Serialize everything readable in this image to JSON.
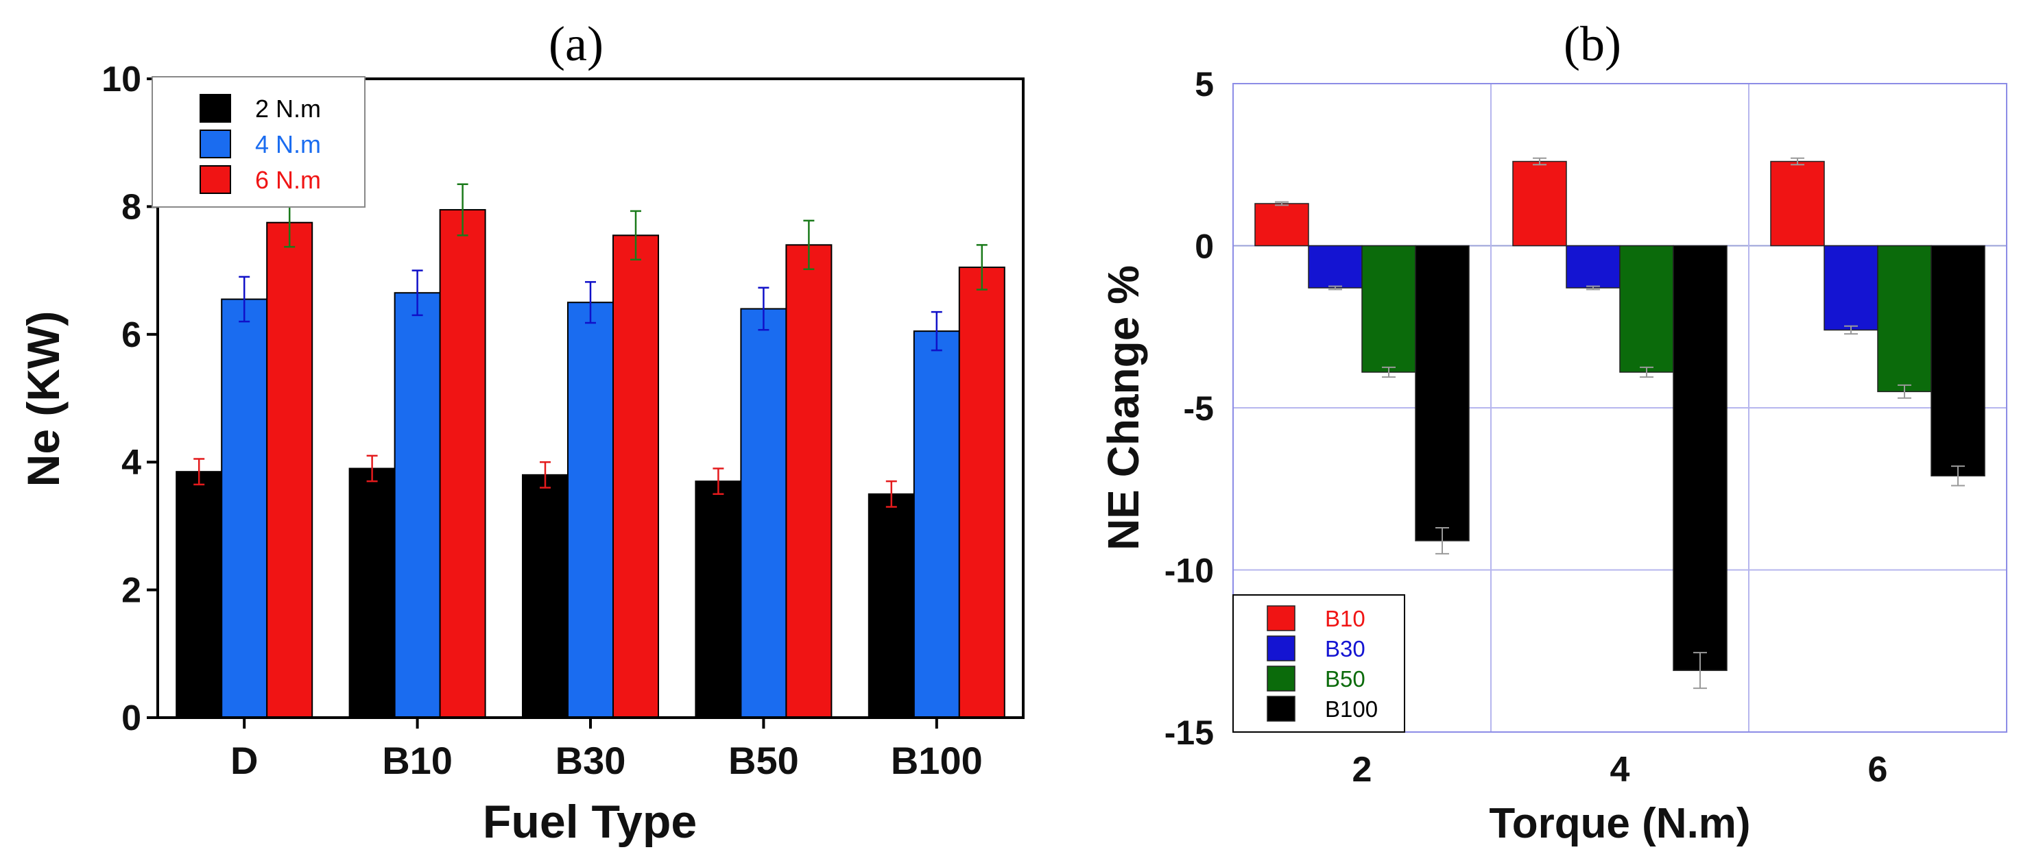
{
  "chart_data": [
    {
      "type": "bar",
      "panel_label": "(a)",
      "xlabel": "Fuel Type",
      "ylabel": "Ne (KW)",
      "categories": [
        "D",
        "B10",
        "B30",
        "B50",
        "B100"
      ],
      "ylim": [
        0,
        10
      ],
      "yticks": [
        0,
        2,
        4,
        6,
        8,
        10
      ],
      "tick_labels": [
        "0",
        "2",
        "4",
        "6",
        "8",
        "10"
      ],
      "legend_position": "top-left",
      "grid": false,
      "series": [
        {
          "name": "2  N.m",
          "color": "#000000",
          "label_color": "#000000",
          "error_color": "#e41a1c",
          "values": [
            3.85,
            3.9,
            3.8,
            3.7,
            3.5
          ],
          "errors": [
            0.2,
            0.2,
            0.2,
            0.2,
            0.2
          ]
        },
        {
          "name": "4 N.m",
          "color": "#1a6cf0",
          "label_color": "#1a6cf0",
          "error_color": "#1010c8",
          "values": [
            6.55,
            6.65,
            6.5,
            6.4,
            6.05
          ],
          "errors": [
            0.35,
            0.35,
            0.32,
            0.33,
            0.3
          ]
        },
        {
          "name": "6 N.m",
          "color": "#f01414",
          "label_color": "#f01414",
          "error_color": "#1a7a1a",
          "values": [
            7.75,
            7.95,
            7.55,
            7.4,
            7.05
          ],
          "errors": [
            0.38,
            0.4,
            0.38,
            0.38,
            0.35
          ]
        }
      ]
    },
    {
      "type": "bar",
      "panel_label": "(b)",
      "xlabel": "Torque (N.m)",
      "ylabel": "NE Change %",
      "categories": [
        "2",
        "4",
        "6"
      ],
      "ylim": [
        -15,
        5
      ],
      "yticks": [
        5,
        0,
        -5,
        -10,
        -15
      ],
      "tick_labels": [
        "5",
        "0",
        "-5",
        "-10",
        "-15"
      ],
      "legend_position": "bottom-left",
      "grid": true,
      "series": [
        {
          "name": "B10",
          "color": "#f01414",
          "label_color": "#f01414",
          "error_color": "#999999",
          "values": [
            1.3,
            2.6,
            2.6
          ],
          "errors": [
            0.05,
            0.1,
            0.1
          ]
        },
        {
          "name": "B30",
          "color": "#1414d2",
          "label_color": "#1414d2",
          "error_color": "#999999",
          "values": [
            -1.3,
            -1.3,
            -2.6
          ],
          "errors": [
            0.05,
            0.05,
            0.12
          ]
        },
        {
          "name": "B50",
          "color": "#0b6b0b",
          "label_color": "#0b6b0b",
          "error_color": "#999999",
          "values": [
            -3.9,
            -3.9,
            -4.5
          ],
          "errors": [
            0.15,
            0.15,
            0.2
          ]
        },
        {
          "name": "B100",
          "color": "#000000",
          "label_color": "#000000",
          "error_color": "#999999",
          "values": [
            -9.1,
            -13.1,
            -7.1
          ],
          "errors": [
            0.4,
            0.55,
            0.3
          ]
        }
      ]
    }
  ]
}
